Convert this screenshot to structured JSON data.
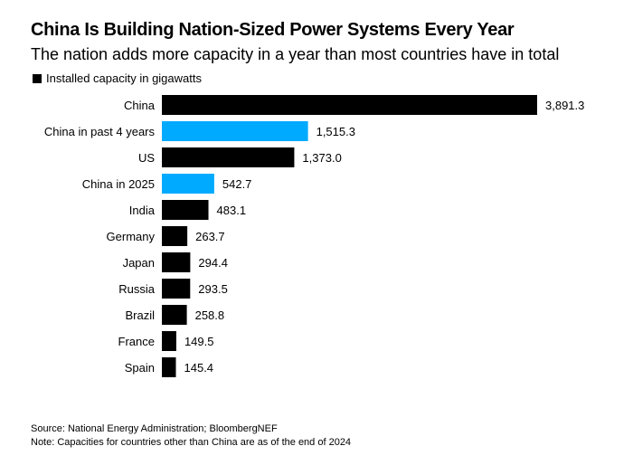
{
  "chart_data": {
    "type": "bar",
    "orientation": "horizontal",
    "title": "China Is Building Nation-Sized Power Systems Every Year",
    "subtitle": "The nation adds more capacity in a year than most countries have in total",
    "legend": "Installed capacity in gigawatts",
    "categories": [
      "China",
      "China in past 4 years",
      "US",
      "China in 2025",
      "India",
      "Germany",
      "Japan",
      "Russia",
      "Brazil",
      "France",
      "Spain"
    ],
    "values": [
      3891.3,
      1515.3,
      1373.0,
      542.7,
      483.1,
      263.7,
      294.4,
      293.5,
      258.8,
      149.5,
      145.4
    ],
    "value_labels": [
      "3,891.3",
      "1,515.3",
      "1,373.0",
      "542.7",
      "483.1",
      "263.7",
      "294.4",
      "293.5",
      "258.8",
      "149.5",
      "145.4"
    ],
    "highlight": [
      false,
      true,
      false,
      true,
      false,
      false,
      false,
      false,
      false,
      false,
      false
    ],
    "colors": {
      "default": "#000000",
      "highlight": "#00aaff"
    },
    "grid": false,
    "source": "Source: National Energy Administration; BloombergNEF",
    "note": "Note: Capacities for countries other than China are as of the end of 2024"
  }
}
